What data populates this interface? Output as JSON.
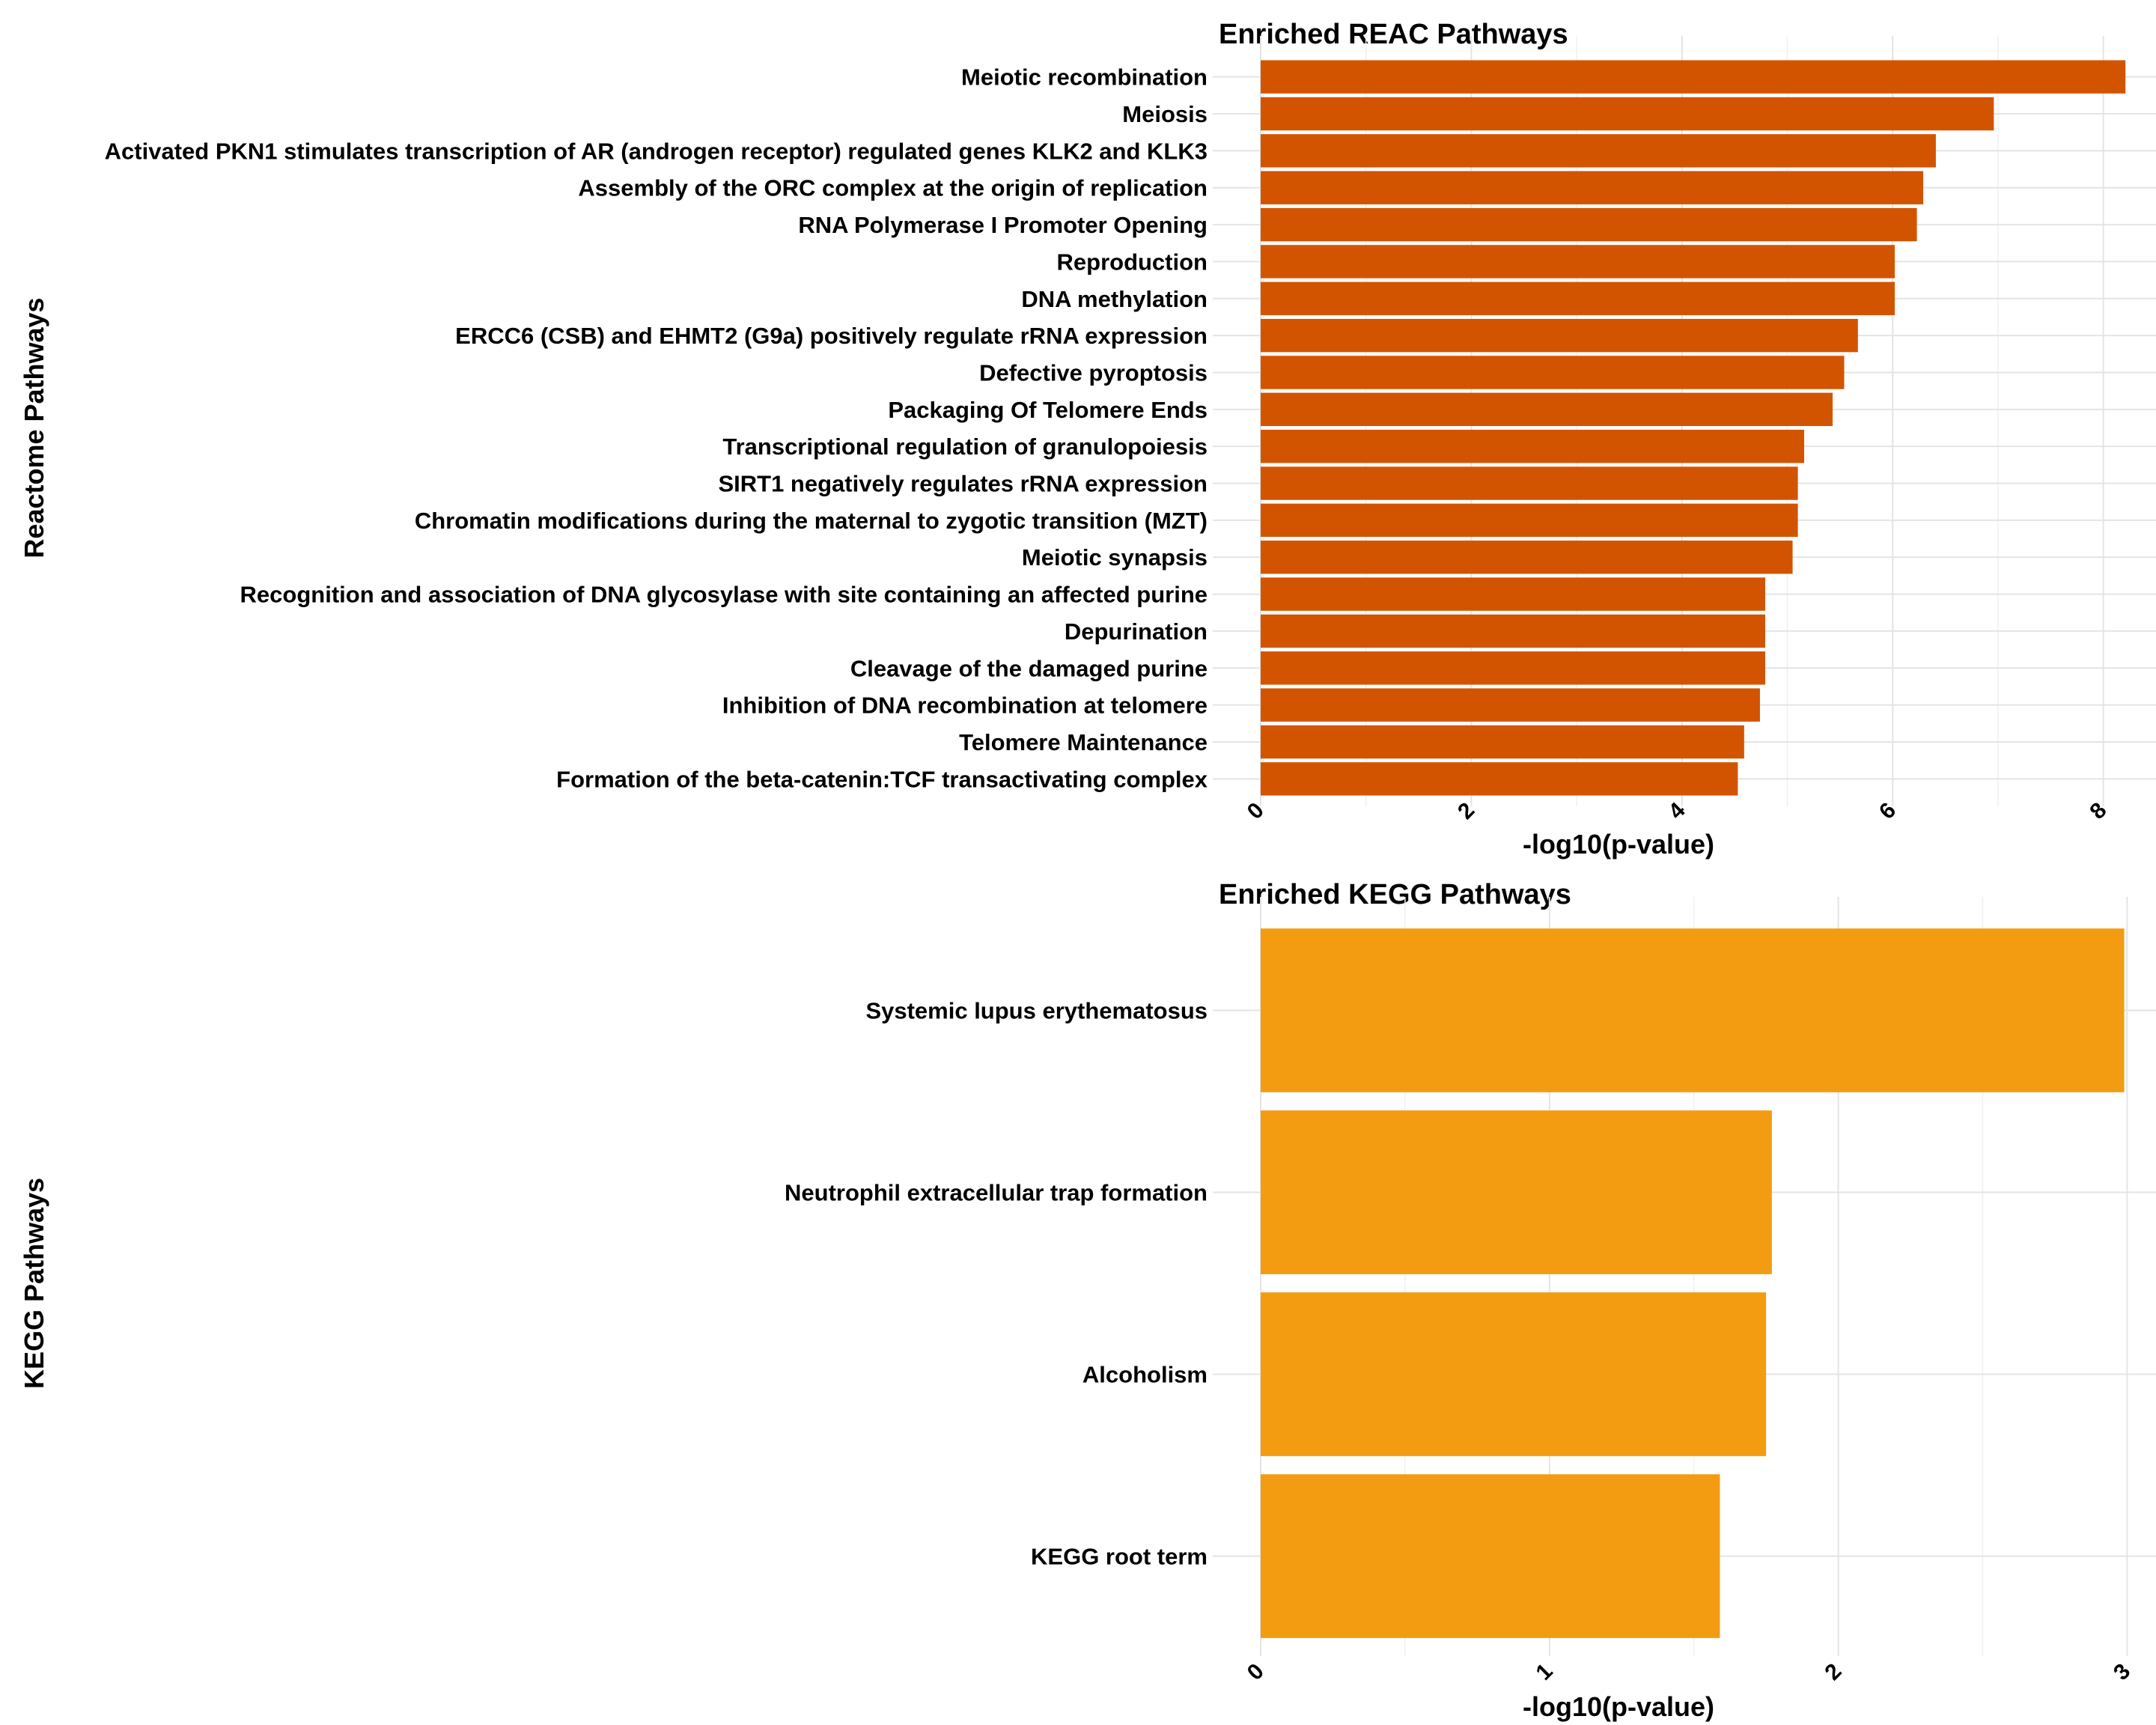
{
  "chart_data": [
    {
      "type": "bar",
      "orientation": "horizontal",
      "title": "Enriched REAC Pathways",
      "xlabel": "-log10(p-value)",
      "ylabel": "Reactome Pathways",
      "xlim": [
        0,
        8.5
      ],
      "xticks": [
        0,
        2,
        4,
        6,
        8
      ],
      "grid": true,
      "color": "#d35400",
      "categories": [
        "Meiotic recombination",
        "Meiosis",
        "Activated PKN1 stimulates transcription of AR (androgen receptor) regulated genes KLK2 and KLK3",
        "Assembly of the ORC complex at the origin of replication",
        "RNA Polymerase I Promoter Opening",
        "Reproduction",
        "DNA methylation",
        "ERCC6 (CSB) and EHMT2 (G9a) positively regulate rRNA expression",
        "Defective pyroptosis",
        "Packaging Of Telomere Ends",
        "Transcriptional regulation of granulopoiesis",
        "SIRT1 negatively regulates rRNA expression",
        "Chromatin modifications during the maternal to zygotic transition (MZT)",
        "Meiotic synapsis",
        "Recognition and association of DNA glycosylase with site containing an affected purine",
        "Depurination",
        "Cleavage of the damaged purine",
        "Inhibition of DNA recombination at telomere",
        "Telomere Maintenance",
        "Formation of the beta-catenin:TCF transactivating complex"
      ],
      "values": [
        8.21,
        6.96,
        6.41,
        6.29,
        6.23,
        6.02,
        6.02,
        5.67,
        5.54,
        5.43,
        5.16,
        5.1,
        5.1,
        5.05,
        4.79,
        4.79,
        4.79,
        4.74,
        4.59,
        4.53
      ]
    },
    {
      "type": "bar",
      "orientation": "horizontal",
      "title": "Enriched KEGG Pathways",
      "xlabel": "-log10(p-value)",
      "ylabel": "KEGG Pathways",
      "xlim": [
        0,
        3.1
      ],
      "xticks": [
        0,
        1,
        2,
        3
      ],
      "grid": true,
      "color": "#f39c12",
      "categories": [
        "Systemic lupus erythematosus",
        "Neutrophil extracellular trap formation",
        "Alcoholism",
        "KEGG root term"
      ],
      "values": [
        2.99,
        1.77,
        1.75,
        1.59
      ]
    }
  ]
}
